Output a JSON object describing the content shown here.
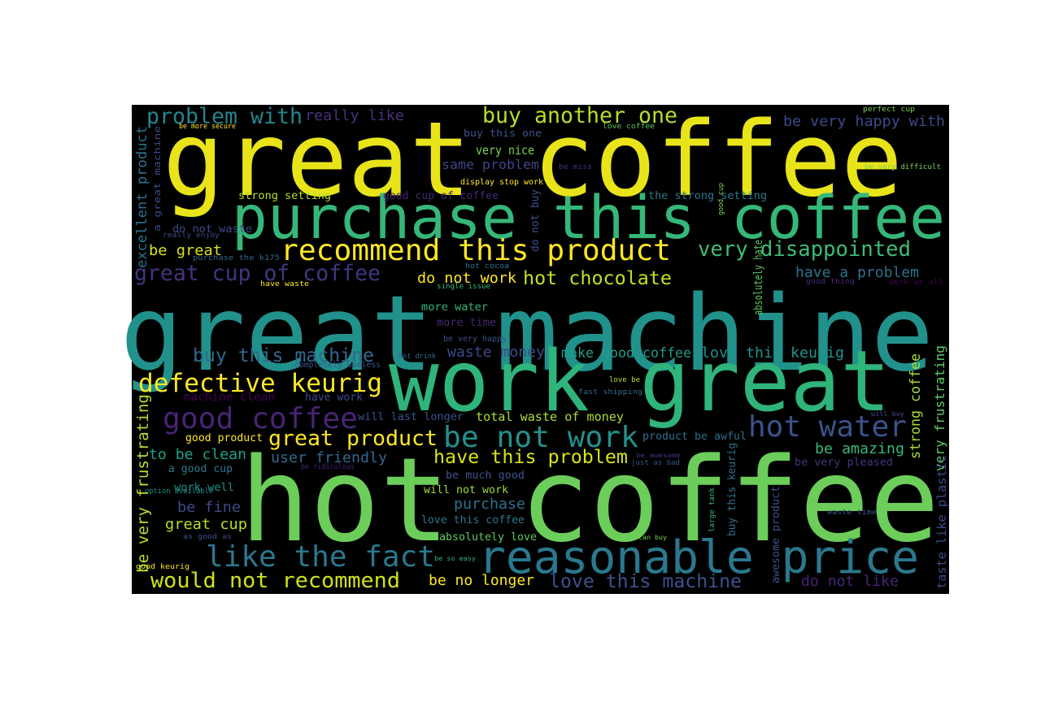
{
  "wordcloud": {
    "words": [
      {
        "text": "great coffee",
        "color": "#e8e419"
      },
      {
        "text": "great machine",
        "color": "#21918c"
      },
      {
        "text": "hot coffee",
        "color": "#6ccd5a"
      },
      {
        "text": "work great",
        "color": "#2fb47c"
      },
      {
        "text": "purchase this coffee",
        "color": "#35b779"
      },
      {
        "text": "reasonable price",
        "color": "#2a788e"
      },
      {
        "text": "recommend this product",
        "color": "#fde725"
      },
      {
        "text": "hot water",
        "color": "#3b528b"
      },
      {
        "text": "good coffee",
        "color": "#482475"
      },
      {
        "text": "be not work",
        "color": "#21918c"
      },
      {
        "text": "like the fact",
        "color": "#2a788e"
      },
      {
        "text": "very disappointed",
        "color": "#3dbc74"
      },
      {
        "text": "defective keurig",
        "color": "#fde725"
      },
      {
        "text": "great cup of coffee",
        "color": "#46337e"
      },
      {
        "text": "problem with",
        "color": "#25858e"
      },
      {
        "text": "buy another one",
        "color": "#b5de2b"
      },
      {
        "text": "hot chocolate",
        "color": "#c2df23"
      },
      {
        "text": "great product",
        "color": "#fde725"
      },
      {
        "text": "would not recommend",
        "color": "#d0e11c"
      },
      {
        "text": "love this machine",
        "color": "#3b528b"
      },
      {
        "text": "have this problem",
        "color": "#d8e219"
      },
      {
        "text": "buy this machine",
        "color": "#31688e"
      },
      {
        "text": "be very happy with",
        "color": "#3e4a89"
      },
      {
        "text": "really like",
        "color": "#46327e"
      },
      {
        "text": "very nice",
        "color": "#7ad151"
      },
      {
        "text": "same problem",
        "color": "#3f4788"
      },
      {
        "text": "buy this one",
        "color": "#3b528b"
      },
      {
        "text": "have a problem",
        "color": "#2c728e"
      },
      {
        "text": "the strong setting",
        "color": "#2a788e"
      },
      {
        "text": "strong setting",
        "color": "#b5de2b"
      },
      {
        "text": "do not waste",
        "color": "#3e4989"
      },
      {
        "text": "be great",
        "color": "#d8e219"
      },
      {
        "text": "do not work",
        "color": "#fde725"
      },
      {
        "text": "more water",
        "color": "#35b779"
      },
      {
        "text": "more time",
        "color": "#482878"
      },
      {
        "text": "waste money",
        "color": "#3e4989"
      },
      {
        "text": "make good coffee",
        "color": "#1f9e89"
      },
      {
        "text": "love this keurig",
        "color": "#20928c"
      },
      {
        "text": "will last longer",
        "color": "#3b528b"
      },
      {
        "text": "total waste of money",
        "color": "#addc30"
      },
      {
        "text": "product be awful",
        "color": "#2d708e"
      },
      {
        "text": "be amazing",
        "color": "#35b779"
      },
      {
        "text": "be very pleased",
        "color": "#46337e"
      },
      {
        "text": "good product",
        "color": "#fde725"
      },
      {
        "text": "to be clean",
        "color": "#1fa188"
      },
      {
        "text": "user friendly",
        "color": "#31688e"
      },
      {
        "text": "a good cup",
        "color": "#2a788e"
      },
      {
        "text": "be much good",
        "color": "#3b528b"
      },
      {
        "text": "will not work",
        "color": "#a0da39"
      },
      {
        "text": "work well",
        "color": "#21918c"
      },
      {
        "text": "purchase",
        "color": "#2c728e"
      },
      {
        "text": "be fine",
        "color": "#3e4a89"
      },
      {
        "text": "great cup",
        "color": "#b5de2b"
      },
      {
        "text": "love this coffee",
        "color": "#2a788e"
      },
      {
        "text": "absolutely love",
        "color": "#5ec962"
      },
      {
        "text": "be no longer",
        "color": "#fde725"
      },
      {
        "text": "do not like",
        "color": "#482475"
      },
      {
        "text": "machine clean",
        "color": "#440154"
      },
      {
        "text": "have work",
        "color": "#3e4989"
      },
      {
        "text": "completely useless",
        "color": "#3b528b"
      },
      {
        "text": "hot drink",
        "color": "#31688e"
      },
      {
        "text": "be very happy",
        "color": "#3b528b"
      },
      {
        "text": "display stop work",
        "color": "#fde725"
      },
      {
        "text": "good cup of coffee",
        "color": "#482475"
      },
      {
        "text": "be more secure",
        "color": "#fde725"
      },
      {
        "text": "love coffee",
        "color": "#5ec962"
      },
      {
        "text": "perfect cup",
        "color": "#7ad151"
      },
      {
        "text": "be miss",
        "color": "#46337e"
      },
      {
        "text": "be very difficult",
        "color": "#7ad151"
      },
      {
        "text": "hot cocoa",
        "color": "#2c728e"
      },
      {
        "text": "have waste",
        "color": "#fde725"
      },
      {
        "text": "single issue",
        "color": "#35b779"
      },
      {
        "text": "good thing",
        "color": "#482878"
      },
      {
        "text": "work at all",
        "color": "#440154"
      },
      {
        "text": "purchase the k175",
        "color": "#31688e"
      },
      {
        "text": "really enjoy",
        "color": "#3e4989"
      },
      {
        "text": "love be",
        "color": "#b5de2b"
      },
      {
        "text": "fast shipping",
        "color": "#31688e"
      },
      {
        "text": "will buy",
        "color": "#3e4989"
      },
      {
        "text": "be awesome",
        "color": "#46337e"
      },
      {
        "text": "just as bad",
        "color": "#3b528b"
      },
      {
        "text": "be ridiculous",
        "color": "#482878"
      },
      {
        "text": "option available",
        "color": "#21918c"
      },
      {
        "text": "as good as",
        "color": "#3b528b"
      },
      {
        "text": "can buy",
        "color": "#7ad151"
      },
      {
        "text": "be so easy",
        "color": "#35b779"
      },
      {
        "text": "good keurig",
        "color": "#fde725"
      },
      {
        "text": "waste time",
        "color": "#3b528b"
      },
      {
        "text": "excellent product",
        "color": "#2c728e"
      },
      {
        "text": "a great machine",
        "color": "#3e4989"
      },
      {
        "text": "be very frustrating",
        "color": "#b5de2b"
      },
      {
        "text": "do not buy",
        "color": "#3b528b"
      },
      {
        "text": "good cup",
        "color": "#7ad151"
      },
      {
        "text": "absolutely hate",
        "color": "#5ec962"
      },
      {
        "text": "strong coffee",
        "color": "#addc30"
      },
      {
        "text": "very frustrating",
        "color": "#5ec962"
      },
      {
        "text": "taste like plastic",
        "color": "#3e4a89"
      },
      {
        "text": "awesome product",
        "color": "#3b528b"
      },
      {
        "text": "buy this keurig",
        "color": "#2c728e"
      },
      {
        "text": "large tank",
        "color": "#35b779"
      }
    ]
  }
}
